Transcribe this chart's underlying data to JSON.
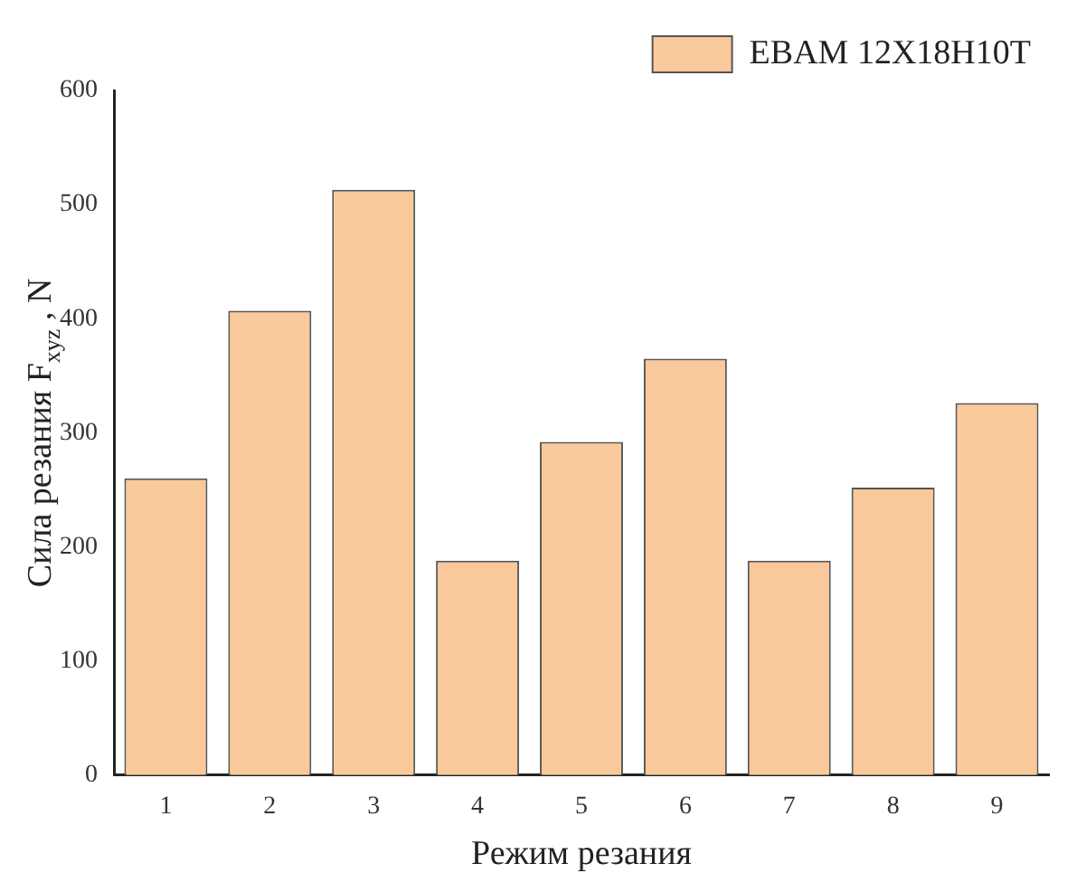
{
  "chart_data": {
    "type": "bar",
    "xlabel": "Режим резания",
    "ylabel": "Сила резания F$_{xyz}$ , N",
    "categories": [
      "1",
      "2",
      "3",
      "4",
      "5",
      "6",
      "7",
      "8",
      "9"
    ],
    "series": [
      {
        "name": "EBAM 12X18H10T",
        "color": "#f9c89b",
        "values": [
          260,
          407,
          513,
          188,
          292,
          365,
          188,
          252,
          326
        ]
      }
    ],
    "ylim": [
      0,
      600
    ],
    "yticks": [
      0,
      100,
      200,
      300,
      400,
      500,
      600
    ],
    "grid": false,
    "legend": "top right"
  }
}
